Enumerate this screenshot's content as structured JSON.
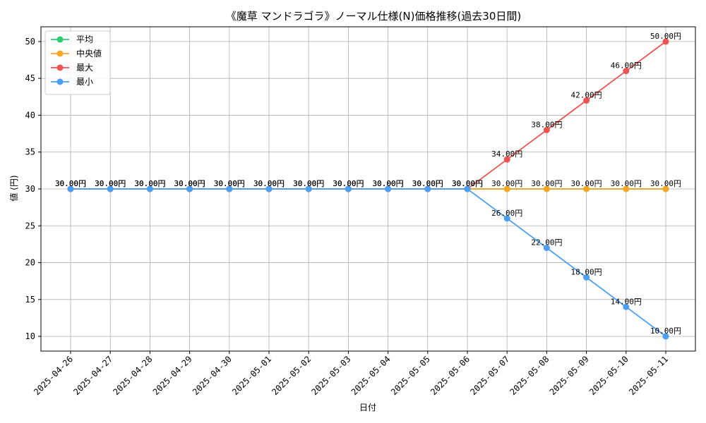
{
  "chart_data": {
    "type": "line",
    "title": "《魔草 マンドラゴラ》ノーマル仕様(N)価格推移(過去30日間)",
    "xlabel": "日付",
    "ylabel": "値 (円)",
    "ylim": [
      8,
      52
    ],
    "yticks": [
      10,
      15,
      20,
      25,
      30,
      35,
      40,
      45,
      50
    ],
    "grid": true,
    "legend_position": "top-left",
    "label_suffix": "円",
    "categories": [
      "2025-04-26",
      "2025-04-27",
      "2025-04-28",
      "2025-04-29",
      "2025-04-30",
      "2025-05-01",
      "2025-05-02",
      "2025-05-03",
      "2025-05-04",
      "2025-05-05",
      "2025-05-06",
      "2025-05-07",
      "2025-05-08",
      "2025-05-09",
      "2025-05-10",
      "2025-05-11"
    ],
    "series": [
      {
        "name": "平均",
        "color": "#2ecc71",
        "values": [
          30,
          30,
          30,
          30,
          30,
          30,
          30,
          30,
          30,
          30,
          30,
          30,
          30,
          30,
          30,
          30
        ],
        "show_labels": false
      },
      {
        "name": "中央値",
        "color": "#f5a623",
        "values": [
          30,
          30,
          30,
          30,
          30,
          30,
          30,
          30,
          30,
          30,
          30,
          30,
          30,
          30,
          30,
          30
        ],
        "show_labels": true
      },
      {
        "name": "最大",
        "color": "#ef5350",
        "values": [
          30,
          30,
          30,
          30,
          30,
          30,
          30,
          30,
          30,
          30,
          30,
          34,
          38,
          42,
          46,
          50
        ],
        "show_labels": true
      },
      {
        "name": "最小",
        "color": "#4a9ff5",
        "values": [
          30,
          30,
          30,
          30,
          30,
          30,
          30,
          30,
          30,
          30,
          30,
          26,
          22,
          18,
          14,
          10
        ],
        "show_labels": true
      }
    ]
  }
}
